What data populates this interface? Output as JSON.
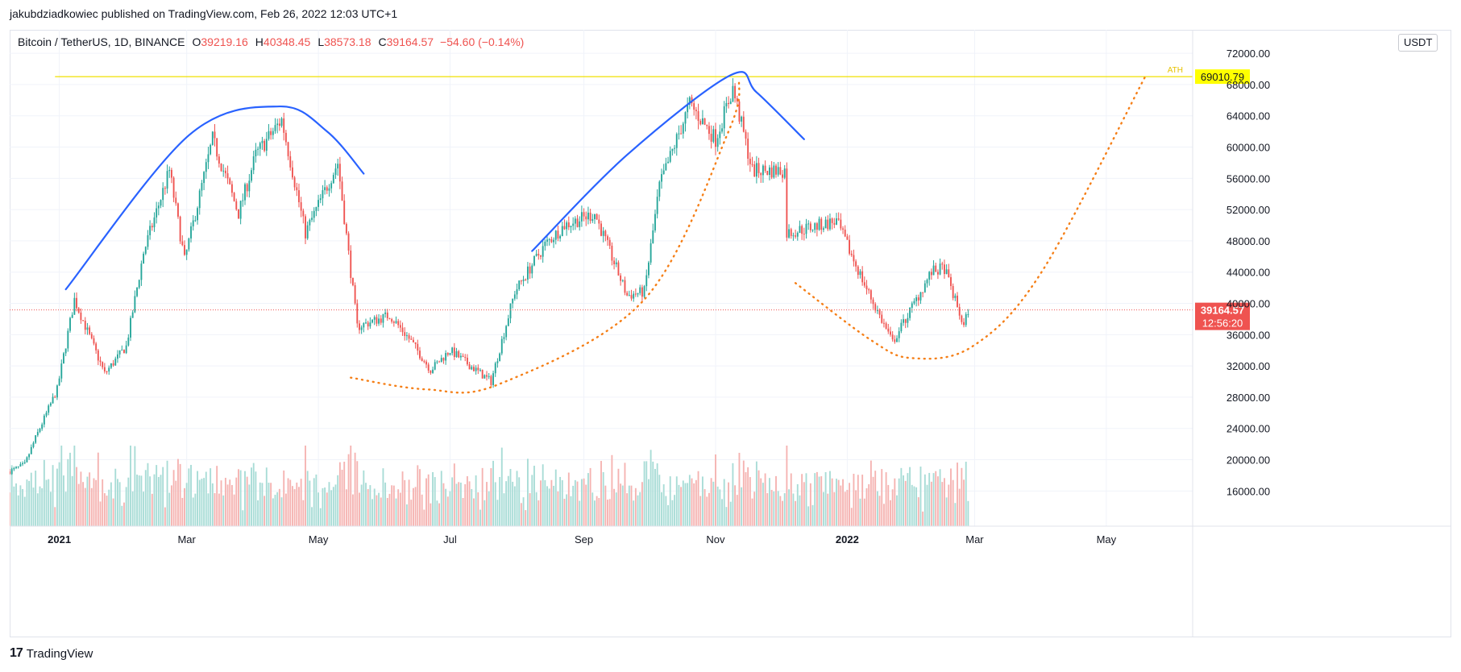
{
  "publisher_line": "jakubdziadkowiec published on TradingView.com, Feb 26, 2022 12:03 UTC+1",
  "legend": {
    "symbol": "Bitcoin / TetherUS, 1D, BINANCE",
    "open_label": "O",
    "open": "39219.16",
    "high_label": "H",
    "high": "40348.45",
    "low_label": "L",
    "low": "38573.18",
    "close_label": "C",
    "close": "39164.57",
    "change": "−54.60 (−0.14%)"
  },
  "currency": "USDT",
  "footer": {
    "brand": "TradingView",
    "logo_mark": "17"
  },
  "colors": {
    "up": "#26a69a",
    "down": "#ef5350",
    "curve": "#2962ff",
    "dotted": "#f57f17",
    "ath_line": "#f0e000",
    "ath_bg": "#ffff00",
    "price_tag": "#ef5350",
    "grid": "#f0f3fa",
    "text": "#131722"
  },
  "chart_data": {
    "type": "candlestick",
    "title": "Bitcoin / TetherUS, 1D, BINANCE",
    "ylabel": "USDT",
    "ylim": [
      11500,
      75000
    ],
    "yticks": [
      16000,
      20000,
      24000,
      28000,
      32000,
      36000,
      40000,
      44000,
      48000,
      52000,
      56000,
      60000,
      64000,
      68000,
      72000
    ],
    "ytick_labels": [
      "16000.00",
      "20000.00",
      "24000.00",
      "28000.00",
      "32000.00",
      "36000.00",
      "40000.00",
      "44000.00",
      "48000.00",
      "52000.00",
      "56000.00",
      "60000.00",
      "64000.00",
      "68000.00",
      "72000.00"
    ],
    "x_date_range": [
      "2020-12-09",
      "2022-06-10"
    ],
    "xticks": [
      {
        "label": "2021",
        "date": "2021-01-01",
        "bold": true
      },
      {
        "label": "Mar",
        "date": "2021-03-01",
        "bold": false
      },
      {
        "label": "May",
        "date": "2021-05-01",
        "bold": false
      },
      {
        "label": "Jul",
        "date": "2021-07-01",
        "bold": false
      },
      {
        "label": "Sep",
        "date": "2021-09-01",
        "bold": false
      },
      {
        "label": "Nov",
        "date": "2021-11-01",
        "bold": false
      },
      {
        "label": "2022",
        "date": "2022-01-01",
        "bold": true
      },
      {
        "label": "Mar",
        "date": "2022-03-01",
        "bold": false
      },
      {
        "label": "May",
        "date": "2022-05-01",
        "bold": false
      }
    ],
    "price_path": [
      {
        "date": "2020-12-09",
        "price": 18500
      },
      {
        "date": "2020-12-16",
        "price": 19400
      },
      {
        "date": "2020-12-21",
        "price": 22800
      },
      {
        "date": "2020-12-31",
        "price": 29000
      },
      {
        "date": "2021-01-08",
        "price": 40500
      },
      {
        "date": "2021-01-22",
        "price": 31000
      },
      {
        "date": "2021-02-01",
        "price": 34500
      },
      {
        "date": "2021-02-09",
        "price": 46500
      },
      {
        "date": "2021-02-21",
        "price": 57000
      },
      {
        "date": "2021-02-28",
        "price": 45500
      },
      {
        "date": "2021-03-13",
        "price": 61000
      },
      {
        "date": "2021-03-25",
        "price": 51500
      },
      {
        "date": "2021-04-02",
        "price": 59000
      },
      {
        "date": "2021-04-14",
        "price": 63500
      },
      {
        "date": "2021-04-25",
        "price": 49000
      },
      {
        "date": "2021-05-10",
        "price": 58000
      },
      {
        "date": "2021-05-19",
        "price": 37000
      },
      {
        "date": "2021-06-03",
        "price": 38500
      },
      {
        "date": "2021-06-12",
        "price": 35500
      },
      {
        "date": "2021-06-22",
        "price": 31500
      },
      {
        "date": "2021-07-01",
        "price": 34000
      },
      {
        "date": "2021-07-20",
        "price": 30000
      },
      {
        "date": "2021-07-31",
        "price": 41500
      },
      {
        "date": "2021-08-14",
        "price": 47500
      },
      {
        "date": "2021-08-23",
        "price": 50000
      },
      {
        "date": "2021-09-06",
        "price": 51500
      },
      {
        "date": "2021-09-21",
        "price": 41000
      },
      {
        "date": "2021-09-29",
        "price": 41500
      },
      {
        "date": "2021-10-06",
        "price": 55000
      },
      {
        "date": "2021-10-20",
        "price": 65500
      },
      {
        "date": "2021-11-01",
        "price": 61000
      },
      {
        "date": "2021-11-09",
        "price": 67500
      },
      {
        "date": "2021-11-18",
        "price": 57000
      },
      {
        "date": "2021-12-03",
        "price": 57000
      },
      {
        "date": "2021-12-04",
        "price": 49000
      },
      {
        "date": "2021-12-27",
        "price": 50500
      },
      {
        "date": "2022-01-10",
        "price": 41800
      },
      {
        "date": "2022-01-22",
        "price": 35000
      },
      {
        "date": "2022-02-09",
        "price": 44000
      },
      {
        "date": "2022-02-15",
        "price": 44500
      },
      {
        "date": "2022-02-24",
        "price": 37000
      },
      {
        "date": "2022-02-26",
        "price": 39164.57
      }
    ],
    "annotations": {
      "ath": {
        "label": "ATH",
        "price_label": "69010.79",
        "price": 69010.79,
        "start_date": "2020-12-30",
        "end_date": "2022-05-20"
      },
      "last_price": {
        "price": 39164.57,
        "label": "39164.57",
        "countdown": "12:56:20"
      },
      "arcs": [
        {
          "style": "solid",
          "points": [
            {
              "date": "2021-01-04",
              "price": 41800
            },
            {
              "date": "2021-03-02",
              "price": 61500
            },
            {
              "date": "2021-04-13",
              "price": 65200
            },
            {
              "date": "2021-05-05",
              "price": 62000
            },
            {
              "date": "2021-05-22",
              "price": 56600
            }
          ]
        },
        {
          "style": "solid",
          "points": [
            {
              "date": "2021-08-08",
              "price": 46700
            },
            {
              "date": "2021-09-21",
              "price": 59000
            },
            {
              "date": "2021-11-08",
              "price": 69200
            },
            {
              "date": "2021-11-20",
              "price": 67000
            },
            {
              "date": "2021-12-12",
              "price": 61000
            }
          ]
        },
        {
          "style": "dotted",
          "points": [
            {
              "date": "2021-05-16",
              "price": 30500
            },
            {
              "date": "2021-06-20",
              "price": 29000
            },
            {
              "date": "2021-07-24",
              "price": 29700
            },
            {
              "date": "2021-09-29",
              "price": 40500
            },
            {
              "date": "2021-11-07",
              "price": 62000
            },
            {
              "date": "2021-11-12",
              "price": 68600
            }
          ]
        },
        {
          "style": "dotted",
          "points": [
            {
              "date": "2021-12-08",
              "price": 42600
            },
            {
              "date": "2022-01-12",
              "price": 35300
            },
            {
              "date": "2022-01-31",
              "price": 33000
            },
            {
              "date": "2022-02-28",
              "price": 34500
            },
            {
              "date": "2022-04-01",
              "price": 44000
            },
            {
              "date": "2022-05-19",
              "price": 69000
            }
          ]
        }
      ]
    }
  }
}
